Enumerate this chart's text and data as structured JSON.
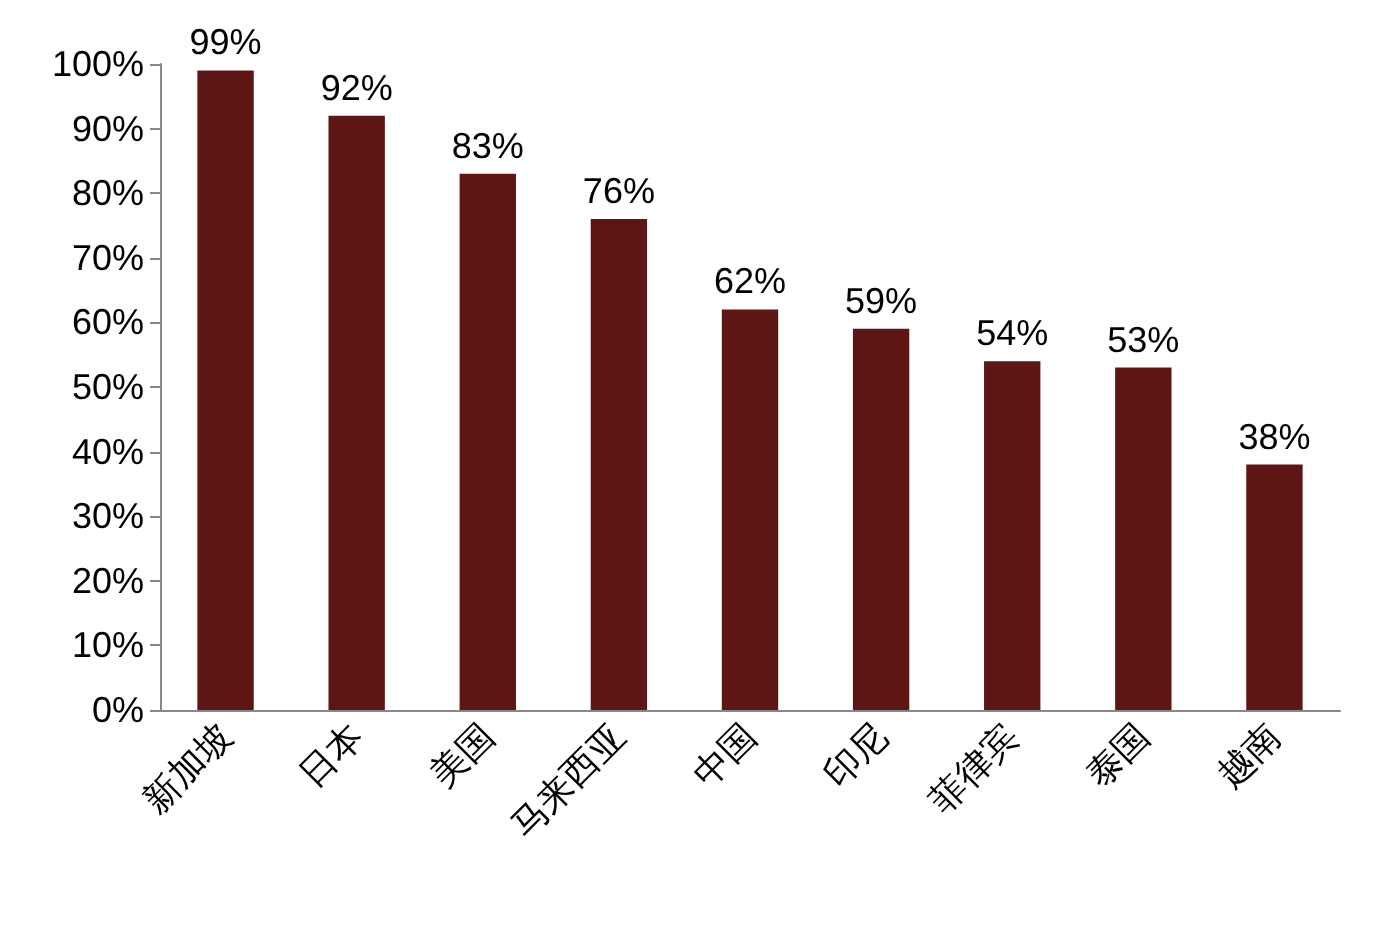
{
  "chart_data": {
    "type": "bar",
    "categories": [
      "新加坡",
      "日本",
      "美国",
      "马来西亚",
      "中国",
      "印尼",
      "菲律宾",
      "泰国",
      "越南"
    ],
    "values": [
      99,
      92,
      83,
      76,
      62,
      59,
      54,
      53,
      38
    ],
    "value_labels": [
      "99%",
      "92%",
      "83%",
      "76%",
      "62%",
      "59%",
      "54%",
      "53%",
      "38%"
    ],
    "color": "#5c1714",
    "ylim": [
      0,
      100
    ],
    "yticks": [
      {
        "value": 0,
        "label": "0%"
      },
      {
        "value": 10,
        "label": "10%"
      },
      {
        "value": 20,
        "label": "20%"
      },
      {
        "value": 30,
        "label": "30%"
      },
      {
        "value": 40,
        "label": "40%"
      },
      {
        "value": 50,
        "label": "50%"
      },
      {
        "value": 60,
        "label": "60%"
      },
      {
        "value": 70,
        "label": "70%"
      },
      {
        "value": 80,
        "label": "80%"
      },
      {
        "value": 90,
        "label": "90%"
      },
      {
        "value": 100,
        "label": "100%"
      }
    ],
    "grid": false
  }
}
